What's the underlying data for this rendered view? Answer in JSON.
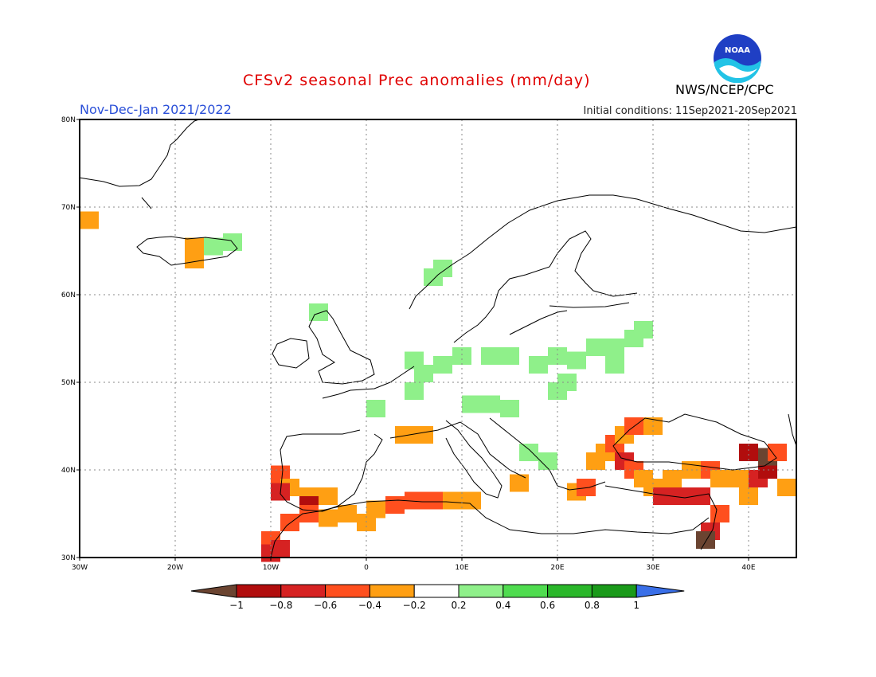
{
  "header": {
    "title": "CFSv2 seasonal Prec anomalies (mm/day)",
    "period": "Nov-Dec-Jan 2021/2022",
    "initial_conditions": "Initial conditions: 11Sep2021-20Sep2021",
    "organization": "NWS/NCEP/CPC",
    "logo_text": "NOAA"
  },
  "map": {
    "lon_range": [
      -30,
      45
    ],
    "lat_range": [
      30,
      80
    ],
    "lon_ticks": [
      {
        "value": -30,
        "label": "30W"
      },
      {
        "value": -20,
        "label": "20W"
      },
      {
        "value": -10,
        "label": "10W"
      },
      {
        "value": 0,
        "label": "0"
      },
      {
        "value": 10,
        "label": "10E"
      },
      {
        "value": 20,
        "label": "20E"
      },
      {
        "value": 30,
        "label": "30E"
      },
      {
        "value": 40,
        "label": "40E"
      }
    ],
    "lat_ticks": [
      {
        "value": 30,
        "label": "30N"
      },
      {
        "value": 40,
        "label": "40N"
      },
      {
        "value": 50,
        "label": "50N"
      },
      {
        "value": 60,
        "label": "60N"
      },
      {
        "value": 70,
        "label": "70N"
      },
      {
        "value": 80,
        "label": "80N"
      }
    ],
    "grid": "dotted",
    "anomaly_cells": [
      {
        "lon": -29,
        "lat": 68.5,
        "value": -0.3
      },
      {
        "lon": -18,
        "lat": 65.5,
        "value": -0.3
      },
      {
        "lon": -18,
        "lat": 64,
        "value": -0.3
      },
      {
        "lon": -16,
        "lat": 65.5,
        "value": 0.3
      },
      {
        "lon": -14,
        "lat": 66,
        "value": 0.3
      },
      {
        "lon": -5,
        "lat": 58,
        "value": 0.3
      },
      {
        "lon": 7,
        "lat": 62,
        "value": 0.3
      },
      {
        "lon": 8,
        "lat": 63,
        "value": 0.3
      },
      {
        "lon": 5,
        "lat": 52.5,
        "value": 0.3
      },
      {
        "lon": 6,
        "lat": 51,
        "value": 0.3
      },
      {
        "lon": 8,
        "lat": 52,
        "value": 0.3
      },
      {
        "lon": 10,
        "lat": 53,
        "value": 0.3
      },
      {
        "lon": 13,
        "lat": 53,
        "value": 0.3
      },
      {
        "lon": 15,
        "lat": 53,
        "value": 0.3
      },
      {
        "lon": 18,
        "lat": 52,
        "value": 0.3
      },
      {
        "lon": 20,
        "lat": 53,
        "value": 0.3
      },
      {
        "lon": 22,
        "lat": 52.5,
        "value": 0.3
      },
      {
        "lon": 24,
        "lat": 54,
        "value": 0.3
      },
      {
        "lon": 26,
        "lat": 54,
        "value": 0.3
      },
      {
        "lon": 28,
        "lat": 55,
        "value": 0.3
      },
      {
        "lon": 29,
        "lat": 56,
        "value": 0.3
      },
      {
        "lon": 26,
        "lat": 52,
        "value": 0.3
      },
      {
        "lon": 5,
        "lat": 49,
        "value": 0.3
      },
      {
        "lon": 20,
        "lat": 49,
        "value": 0.3
      },
      {
        "lon": 21,
        "lat": 50,
        "value": 0.3
      },
      {
        "lon": 1,
        "lat": 47,
        "value": 0.3
      },
      {
        "lon": 11,
        "lat": 47.5,
        "value": 0.3
      },
      {
        "lon": 13,
        "lat": 47.5,
        "value": 0.3
      },
      {
        "lon": 15,
        "lat": 47,
        "value": 0.3
      },
      {
        "lon": 17,
        "lat": 42,
        "value": 0.3
      },
      {
        "lon": 19,
        "lat": 41,
        "value": 0.3
      },
      {
        "lon": 4,
        "lat": 44,
        "value": -0.3
      },
      {
        "lon": 6,
        "lat": 44,
        "value": -0.3
      },
      {
        "lon": -9,
        "lat": 39.5,
        "value": -0.5
      },
      {
        "lon": -8,
        "lat": 38,
        "value": -0.3
      },
      {
        "lon": -6,
        "lat": 37,
        "value": -0.3
      },
      {
        "lon": -4,
        "lat": 37,
        "value": -0.3
      },
      {
        "lon": -9,
        "lat": 37.5,
        "value": -0.7
      },
      {
        "lon": -6,
        "lat": 36,
        "value": -0.9
      },
      {
        "lon": -6,
        "lat": 35,
        "value": -0.5
      },
      {
        "lon": -8,
        "lat": 34,
        "value": -0.5
      },
      {
        "lon": -10,
        "lat": 32,
        "value": -0.5
      },
      {
        "lon": -9,
        "lat": 31,
        "value": -0.7
      },
      {
        "lon": -10,
        "lat": 30.5,
        "value": -0.7
      },
      {
        "lon": -4,
        "lat": 34.5,
        "value": -0.3
      },
      {
        "lon": -2,
        "lat": 35,
        "value": -0.3
      },
      {
        "lon": 0,
        "lat": 34,
        "value": -0.3
      },
      {
        "lon": 1,
        "lat": 35.5,
        "value": -0.3
      },
      {
        "lon": 3,
        "lat": 36,
        "value": -0.5
      },
      {
        "lon": 5,
        "lat": 36.5,
        "value": -0.5
      },
      {
        "lon": 7,
        "lat": 36.5,
        "value": -0.5
      },
      {
        "lon": 9,
        "lat": 36.5,
        "value": -0.3
      },
      {
        "lon": 11,
        "lat": 36.5,
        "value": -0.3
      },
      {
        "lon": 16,
        "lat": 38.5,
        "value": -0.3
      },
      {
        "lon": 22,
        "lat": 37.5,
        "value": -0.3
      },
      {
        "lon": 23,
        "lat": 38,
        "value": -0.5
      },
      {
        "lon": 24,
        "lat": 41,
        "value": -0.3
      },
      {
        "lon": 25,
        "lat": 42,
        "value": -0.3
      },
      {
        "lon": 26,
        "lat": 43,
        "value": -0.5
      },
      {
        "lon": 27,
        "lat": 44,
        "value": -0.3
      },
      {
        "lon": 28,
        "lat": 45,
        "value": -0.5
      },
      {
        "lon": 30,
        "lat": 45,
        "value": -0.3
      },
      {
        "lon": 27,
        "lat": 41,
        "value": -0.7
      },
      {
        "lon": 28,
        "lat": 40,
        "value": -0.5
      },
      {
        "lon": 29,
        "lat": 39,
        "value": -0.3
      },
      {
        "lon": 30,
        "lat": 38,
        "value": -0.3
      },
      {
        "lon": 31,
        "lat": 37,
        "value": -0.7
      },
      {
        "lon": 33,
        "lat": 37,
        "value": -0.7
      },
      {
        "lon": 35,
        "lat": 37,
        "value": -0.7
      },
      {
        "lon": 32,
        "lat": 39,
        "value": -0.3
      },
      {
        "lon": 34,
        "lat": 40,
        "value": -0.3
      },
      {
        "lon": 36,
        "lat": 40,
        "value": -0.5
      },
      {
        "lon": 37,
        "lat": 39,
        "value": -0.3
      },
      {
        "lon": 39,
        "lat": 39,
        "value": -0.3
      },
      {
        "lon": 41,
        "lat": 39,
        "value": -0.7
      },
      {
        "lon": 42,
        "lat": 40,
        "value": -0.9
      },
      {
        "lon": 42,
        "lat": 41.5,
        "value": -1.1
      },
      {
        "lon": 40,
        "lat": 42,
        "value": -0.9
      },
      {
        "lon": 43,
        "lat": 42,
        "value": -0.5
      },
      {
        "lon": 44,
        "lat": 38,
        "value": -0.3
      },
      {
        "lon": 40,
        "lat": 37,
        "value": -0.3
      },
      {
        "lon": 37,
        "lat": 35,
        "value": -0.5
      },
      {
        "lon": 36,
        "lat": 33,
        "value": -0.7
      },
      {
        "lon": 35.5,
        "lat": 32,
        "value": -1.1
      }
    ],
    "noaa_logo_lettering": "NOAA"
  },
  "colorbar": {
    "boundaries": [
      "-1",
      "-0.8",
      "-0.6",
      "-0.4",
      "-0.2",
      "0.2",
      "0.4",
      "0.6",
      "0.8",
      "1"
    ],
    "colors": [
      "#6b4431",
      "#b10d0d",
      "#d62222",
      "#ff4f1e",
      "#ff9f13",
      "#ffffff",
      "#8ff08a",
      "#4fdc4f",
      "#2ab72a",
      "#1a9a1a",
      "#3a6fe8"
    ]
  }
}
